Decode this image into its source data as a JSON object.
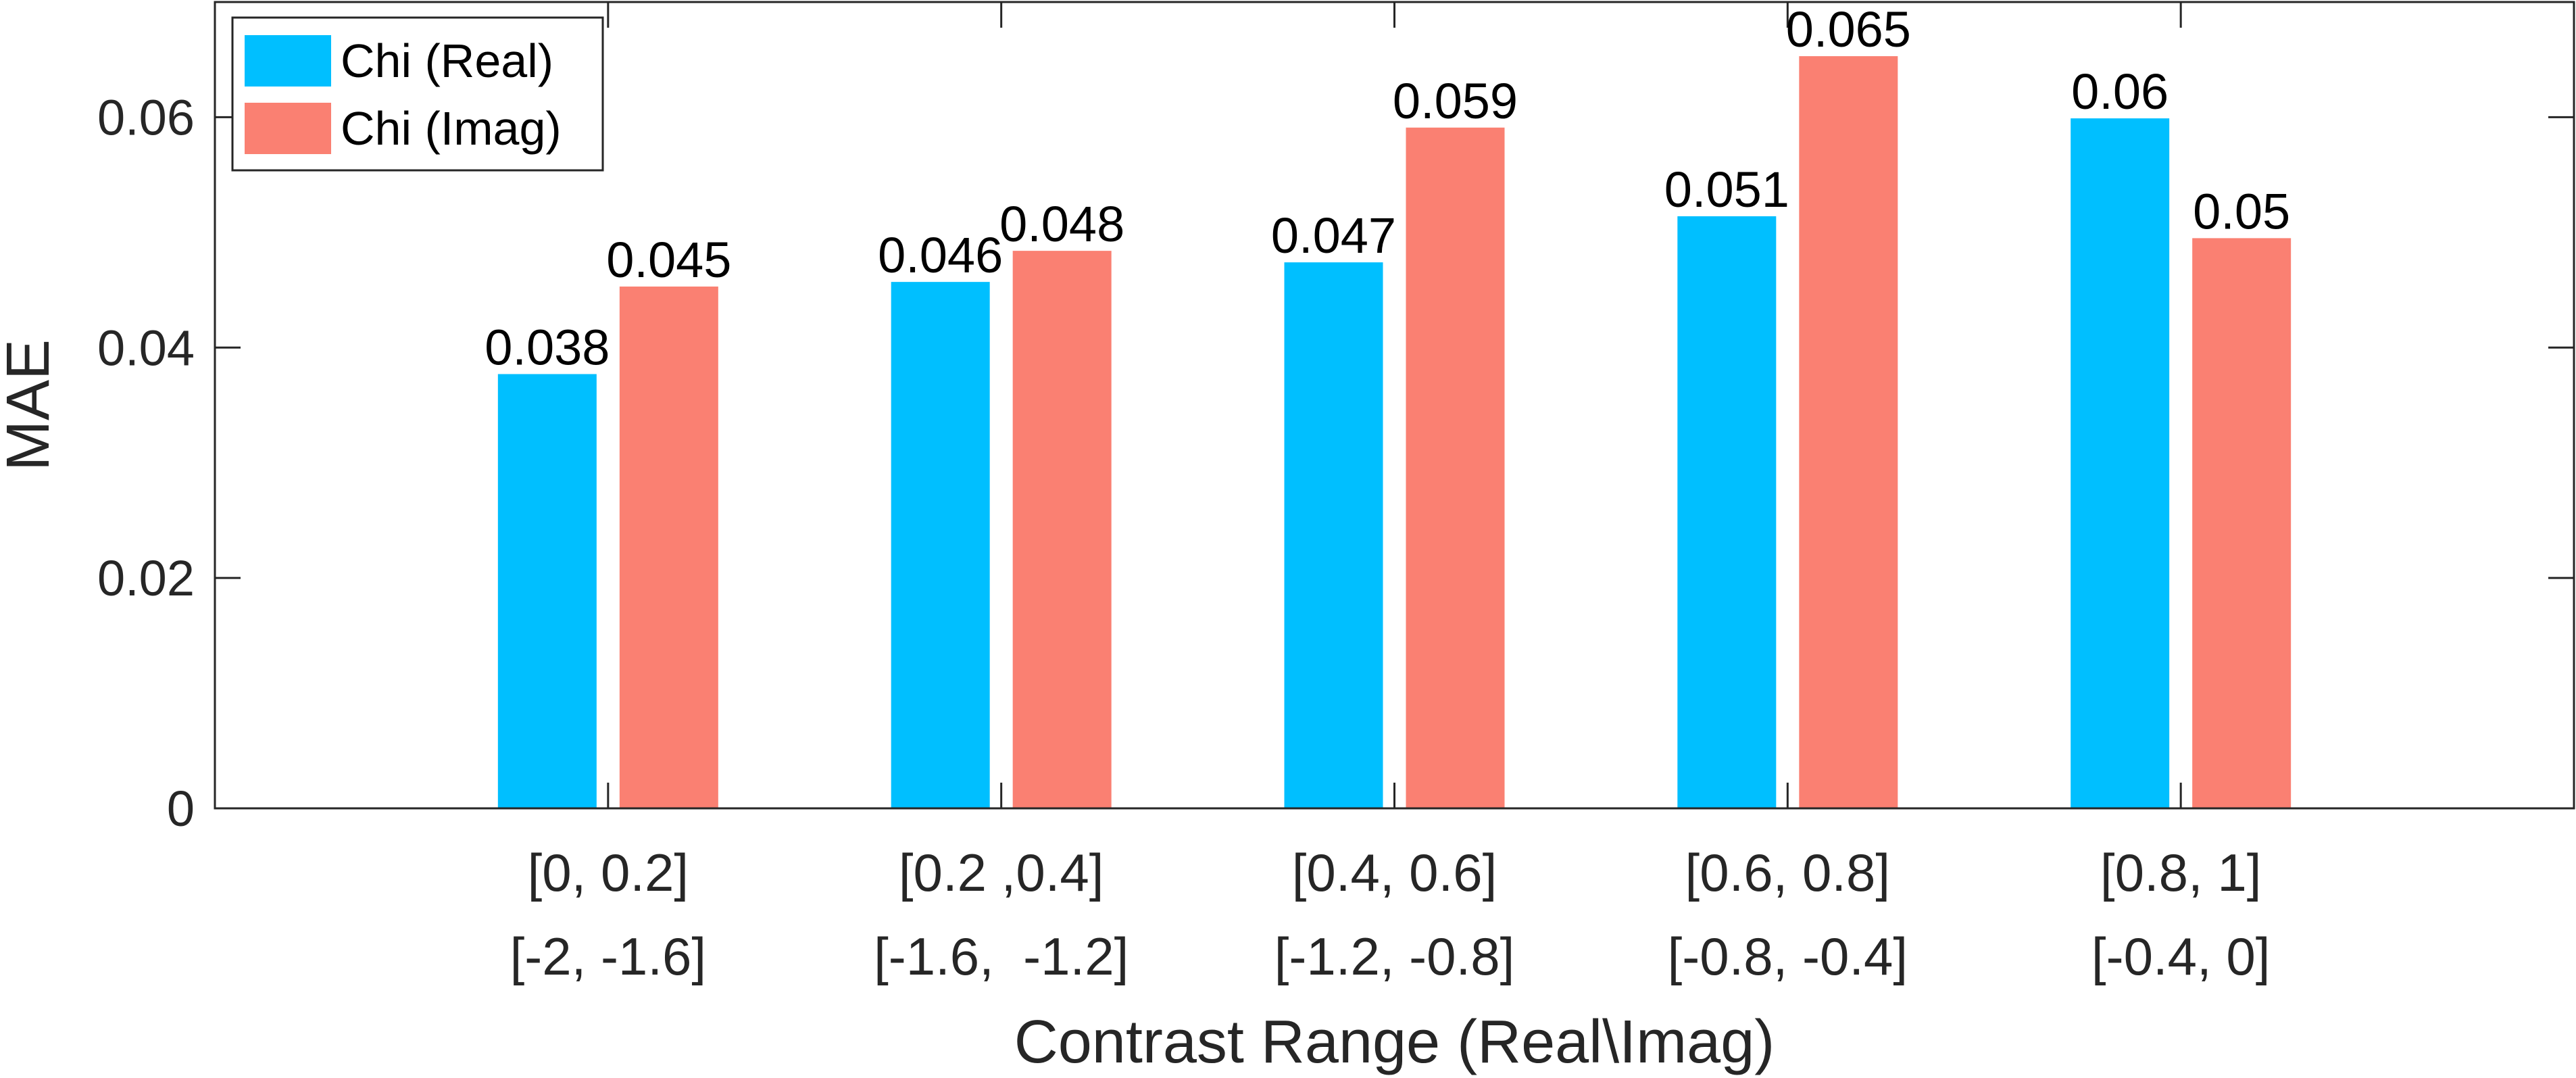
{
  "chart_data": {
    "type": "bar",
    "title": "",
    "xlabel": "Contrast Range (Real\\Imag)",
    "ylabel": "MAE",
    "ylim": [
      0,
      0.07
    ],
    "yticks": [
      0,
      0.02,
      0.04,
      0.06
    ],
    "ytick_labels": [
      "0",
      "0.02",
      "0.04",
      "0.06"
    ],
    "grid": false,
    "legend_position": "top-left",
    "categories": [
      {
        "real": "[0, 0.2]",
        "imag": "[-2, -1.6]"
      },
      {
        "real": "[0.2 ,0.4]",
        "imag": "[-1.6,  -1.2]"
      },
      {
        "real": "[0.4, 0.6]",
        "imag": "[-1.2, -0.8]"
      },
      {
        "real": "[0.6, 0.8]",
        "imag": "[-0.8, -0.4]"
      },
      {
        "real": "[0.8, 1]",
        "imag": "[-0.4, 0]"
      }
    ],
    "series": [
      {
        "name": "Chi (Real)",
        "color": "#00BFFF",
        "values": [
          0.0377,
          0.0457,
          0.0474,
          0.0514,
          0.0599
        ],
        "labels": [
          "0.038",
          "0.046",
          "0.047",
          "0.051",
          "0.06"
        ]
      },
      {
        "name": "Chi (Imag)",
        "color": "#FA8072",
        "values": [
          0.0453,
          0.0484,
          0.0591,
          0.0653,
          0.0495
        ],
        "labels": [
          "0.045",
          "0.048",
          "0.059",
          "0.065",
          "0.05"
        ]
      }
    ]
  }
}
